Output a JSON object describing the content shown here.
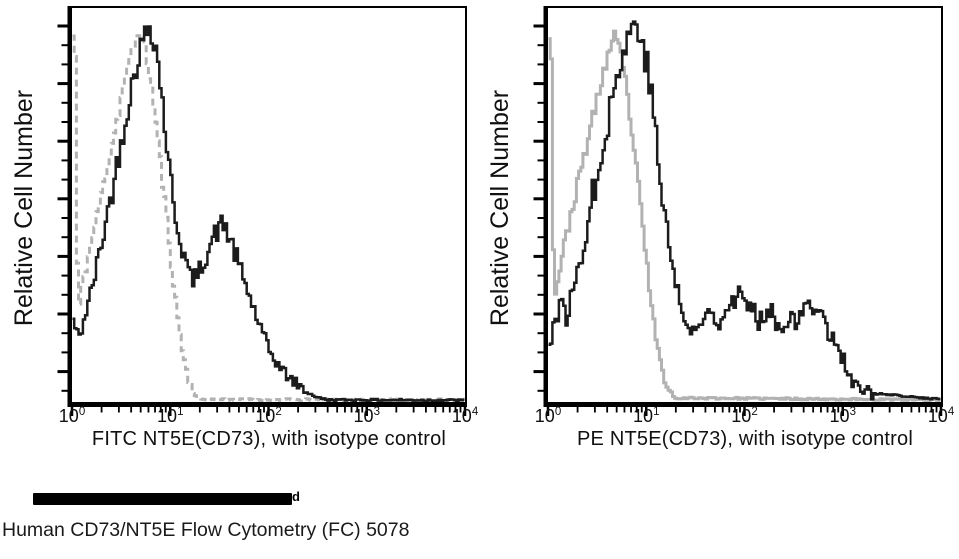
{
  "page": {
    "background": "#ffffff",
    "redacted_line": {
      "visible_text_end": "d"
    },
    "caption": "Human CD73/NT5E Flow Cytometry (FC) 5078"
  },
  "colors": {
    "axis": "#000000",
    "stain_curve": "#1c1c1c",
    "isotype_curve": "#b2b2b2",
    "text": "#111111"
  },
  "chart_data": [
    {
      "id": "fitc",
      "type": "line",
      "subtype": "flow-cytometry-histogram-overlay",
      "xlabel": "FITC NT5E(CD73), with isotype control",
      "ylabel": "Relative Cell Number",
      "x_scale": "log10",
      "xlim_exponents": [
        0,
        4
      ],
      "x_ticks_exponents": [
        0,
        1,
        2,
        3,
        4
      ],
      "ylim": [
        0,
        100
      ],
      "grid": false,
      "legend": "none",
      "series": [
        {
          "name": "isotype-control",
          "color": "#b2b2b2",
          "dash": "7 5",
          "width": 3,
          "seed": 11,
          "noise": 2,
          "points": [
            [
              0,
              95
            ],
            [
              0.02,
              95
            ],
            [
              0.05,
              22
            ],
            [
              0.1,
              31
            ],
            [
              0.16,
              38
            ],
            [
              0.22,
              45
            ],
            [
              0.3,
              55
            ],
            [
              0.38,
              65
            ],
            [
              0.46,
              75
            ],
            [
              0.54,
              85
            ],
            [
              0.62,
              93
            ],
            [
              0.68,
              97
            ],
            [
              0.74,
              91
            ],
            [
              0.8,
              82
            ],
            [
              0.86,
              69
            ],
            [
              0.92,
              55
            ],
            [
              0.98,
              41
            ],
            [
              1.04,
              27
            ],
            [
              1.1,
              15
            ],
            [
              1.17,
              6
            ],
            [
              1.24,
              1.5
            ],
            [
              1.32,
              0.4
            ],
            [
              4,
              0.3
            ]
          ]
        },
        {
          "name": "cd73-fitc-stain",
          "color": "#1c1c1c",
          "dash": "",
          "width": 2.5,
          "seed": 42,
          "noise": 3.5,
          "points": [
            [
              0,
              21
            ],
            [
              0.06,
              16
            ],
            [
              0.12,
              22
            ],
            [
              0.18,
              28
            ],
            [
              0.25,
              36
            ],
            [
              0.32,
              45
            ],
            [
              0.4,
              55
            ],
            [
              0.48,
              66
            ],
            [
              0.56,
              77
            ],
            [
              0.64,
              87
            ],
            [
              0.71,
              94
            ],
            [
              0.78,
              98
            ],
            [
              0.84,
              93
            ],
            [
              0.9,
              81
            ],
            [
              0.96,
              65
            ],
            [
              1.02,
              52
            ],
            [
              1.08,
              43
            ],
            [
              1.14,
              37
            ],
            [
              1.2,
              32
            ],
            [
              1.26,
              32
            ],
            [
              1.32,
              36
            ],
            [
              1.4,
              41
            ],
            [
              1.48,
              45
            ],
            [
              1.54,
              46
            ],
            [
              1.6,
              42
            ],
            [
              1.68,
              36
            ],
            [
              1.76,
              30
            ],
            [
              1.84,
              24
            ],
            [
              1.92,
              18
            ],
            [
              2.0,
              13
            ],
            [
              2.1,
              9
            ],
            [
              2.2,
              6
            ],
            [
              2.3,
              4
            ],
            [
              2.4,
              2
            ],
            [
              2.5,
              0.8
            ],
            [
              2.6,
              0.3
            ],
            [
              4,
              0.2
            ]
          ]
        }
      ]
    },
    {
      "id": "pe",
      "type": "line",
      "subtype": "flow-cytometry-histogram-overlay",
      "xlabel": "PE NT5E(CD73), with isotype control",
      "ylabel": "Relative Cell Number",
      "x_scale": "log10",
      "xlim_exponents": [
        0,
        4
      ],
      "x_ticks_exponents": [
        0,
        1,
        2,
        3,
        4
      ],
      "ylim": [
        0,
        100
      ],
      "grid": false,
      "legend": "none",
      "series": [
        {
          "name": "isotype-control",
          "color": "#b2b2b2",
          "dash": "",
          "width": 3,
          "seed": 23,
          "noise": 2,
          "points": [
            [
              0,
              96
            ],
            [
              0.02,
              96
            ],
            [
              0.05,
              26
            ],
            [
              0.12,
              36
            ],
            [
              0.2,
              46
            ],
            [
              0.28,
              55
            ],
            [
              0.36,
              64
            ],
            [
              0.44,
              73
            ],
            [
              0.52,
              82
            ],
            [
              0.6,
              90
            ],
            [
              0.66,
              95
            ],
            [
              0.72,
              91
            ],
            [
              0.78,
              83
            ],
            [
              0.84,
              71
            ],
            [
              0.9,
              58
            ],
            [
              0.96,
              44
            ],
            [
              1.02,
              30
            ],
            [
              1.08,
              18
            ],
            [
              1.14,
              9
            ],
            [
              1.2,
              3.5
            ],
            [
              1.28,
              0.8
            ],
            [
              4,
              0.3
            ]
          ]
        },
        {
          "name": "cd73-pe-stain",
          "color": "#1c1c1c",
          "dash": "",
          "width": 2.5,
          "seed": 77,
          "noise": 4.5,
          "points": [
            [
              0,
              15
            ],
            [
              0.06,
              21
            ],
            [
              0.12,
              25
            ],
            [
              0.18,
              22
            ],
            [
              0.26,
              30
            ],
            [
              0.34,
              40
            ],
            [
              0.42,
              50
            ],
            [
              0.5,
              61
            ],
            [
              0.58,
              71
            ],
            [
              0.66,
              81
            ],
            [
              0.74,
              89
            ],
            [
              0.82,
              96
            ],
            [
              0.89,
              99
            ],
            [
              0.96,
              93
            ],
            [
              1.02,
              84
            ],
            [
              1.08,
              71
            ],
            [
              1.14,
              56
            ],
            [
              1.2,
              44
            ],
            [
              1.28,
              32
            ],
            [
              1.36,
              23
            ],
            [
              1.44,
              17
            ],
            [
              1.54,
              20
            ],
            [
              1.64,
              24
            ],
            [
              1.74,
              21
            ],
            [
              1.84,
              26
            ],
            [
              1.94,
              28
            ],
            [
              2.04,
              24
            ],
            [
              2.14,
              21
            ],
            [
              2.24,
              25
            ],
            [
              2.34,
              19
            ],
            [
              2.44,
              22
            ],
            [
              2.54,
              20
            ],
            [
              2.64,
              26
            ],
            [
              2.74,
              25
            ],
            [
              2.82,
              19
            ],
            [
              2.9,
              16
            ],
            [
              2.98,
              12
            ],
            [
              3.06,
              6
            ],
            [
              3.15,
              3
            ],
            [
              3.3,
              2
            ],
            [
              3.5,
              1.5
            ],
            [
              3.7,
              1
            ],
            [
              4,
              0.5
            ]
          ]
        }
      ]
    }
  ]
}
